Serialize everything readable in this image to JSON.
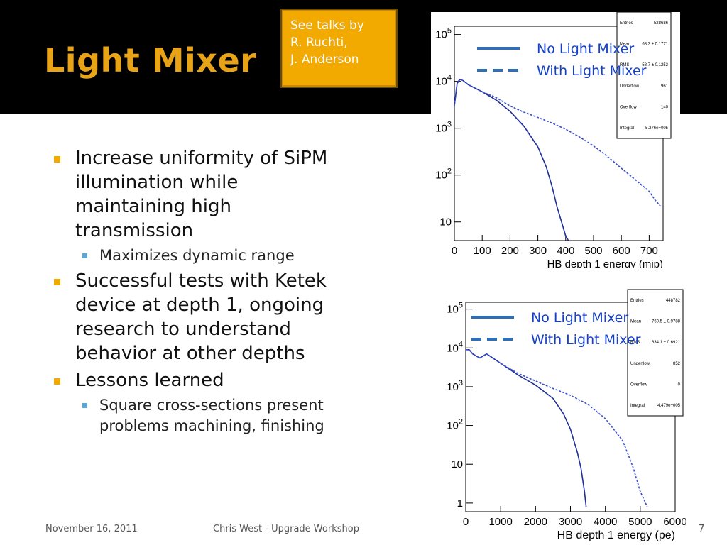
{
  "slide": {
    "title": "Light Mixer",
    "note": {
      "lines": [
        "See talks by",
        "R. Ruchti,",
        "J. Anderson"
      ]
    },
    "bullets": [
      {
        "text": "Increase uniformity of SiPM illumination while maintaining high transmission",
        "level": 1
      },
      {
        "text": "Maximizes dynamic range",
        "level": 2
      },
      {
        "text": "Successful tests with Ketek device at depth 1, ongoing research to understand behavior at other depths",
        "level": 1
      },
      {
        "text": "Lessons learned",
        "level": 1
      },
      {
        "text": "Square cross-sections present problems machining, finishing",
        "level": 2
      }
    ],
    "footer": {
      "date": "November 16, 2011",
      "talk": "Chris West - Upgrade Workshop",
      "page": "7"
    }
  },
  "chart_data": [
    {
      "type": "line",
      "xlabel": "HB depth 1 energy (mip)",
      "ylabel": "",
      "log_y": true,
      "xlim": [
        0,
        750
      ],
      "ylim": [
        4,
        150000
      ],
      "x_ticks": [
        0,
        100,
        200,
        300,
        400,
        500,
        600,
        700
      ],
      "y_ticks": [
        10,
        100,
        1000,
        10000,
        100000
      ],
      "y_tick_labels": [
        "10",
        "10^2",
        "10^3",
        "10^4",
        "10^5"
      ],
      "legend_position": "top",
      "stats_box": {
        "rows": [
          {
            "label": "Entries",
            "value": "528686"
          },
          {
            "label": "Mean",
            "value": "68.2 ± 0.1771"
          },
          {
            "label": "RMS",
            "value": "58.7 ± 0.1252"
          },
          {
            "label": "Underflow",
            "value": "961"
          },
          {
            "label": "Overflow",
            "value": "140"
          },
          {
            "label": "Integral",
            "value": "5.276e+005"
          }
        ]
      },
      "series": [
        {
          "name": "No Light Mixer",
          "style": "solid",
          "color": "#1f2f9a",
          "x": [
            0,
            10,
            20,
            30,
            50,
            100,
            150,
            200,
            250,
            300,
            330,
            350,
            370,
            390,
            400,
            410
          ],
          "y": [
            3000,
            9000,
            11000,
            10500,
            8500,
            6000,
            4000,
            2300,
            1100,
            400,
            150,
            60,
            20,
            8,
            5,
            4
          ]
        },
        {
          "name": "With Light Mixer",
          "style": "dashed",
          "color": "#3a4fd0",
          "x": [
            0,
            10,
            20,
            30,
            50,
            100,
            150,
            200,
            250,
            300,
            350,
            400,
            450,
            500,
            550,
            600,
            650,
            700,
            720,
            740
          ],
          "y": [
            3000,
            9500,
            11000,
            10500,
            8500,
            6000,
            4500,
            3000,
            2200,
            1700,
            1300,
            950,
            650,
            420,
            250,
            140,
            80,
            45,
            30,
            22
          ]
        }
      ]
    },
    {
      "type": "line",
      "xlabel": "HB depth 1 energy (pe)",
      "ylabel": "",
      "log_y": true,
      "xlim": [
        0,
        6000
      ],
      "ylim": [
        0.6,
        150000
      ],
      "x_ticks": [
        0,
        1000,
        2000,
        3000,
        4000,
        5000,
        6000
      ],
      "y_ticks": [
        1,
        10,
        100,
        1000,
        10000,
        100000
      ],
      "y_tick_labels": [
        "1",
        "10",
        "10^2",
        "10^3",
        "10^4",
        "10^5"
      ],
      "legend_position": "top",
      "stats_box": {
        "rows": [
          {
            "label": "Entries",
            "value": "448782"
          },
          {
            "label": "Mean",
            "value": "760.5 ± 0.9788"
          },
          {
            "label": "RMS",
            "value": "634.1 ± 0.6921"
          },
          {
            "label": "Underflow",
            "value": "852"
          },
          {
            "label": "Overflow",
            "value": "0"
          },
          {
            "label": "Integral",
            "value": "4.479e+005"
          }
        ]
      },
      "series": [
        {
          "name": "No Light Mixer",
          "style": "solid",
          "color": "#1f2f9a",
          "x": [
            0,
            100,
            200,
            400,
            600,
            1000,
            1500,
            2000,
            2500,
            2800,
            3000,
            3200,
            3300,
            3400,
            3450
          ],
          "y": [
            9000,
            9000,
            7000,
            5500,
            7000,
            4000,
            2000,
            1100,
            500,
            200,
            80,
            20,
            8,
            2,
            0.8
          ]
        },
        {
          "name": "With Light Mixer",
          "style": "dashed",
          "color": "#3a4fd0",
          "x": [
            0,
            100,
            200,
            400,
            600,
            1000,
            1500,
            2000,
            2500,
            3000,
            3500,
            4000,
            4500,
            4800,
            5000,
            5200
          ],
          "y": [
            9000,
            9000,
            7000,
            5500,
            7000,
            4000,
            2200,
            1400,
            900,
            600,
            350,
            150,
            40,
            8,
            2,
            0.8
          ]
        }
      ]
    }
  ]
}
